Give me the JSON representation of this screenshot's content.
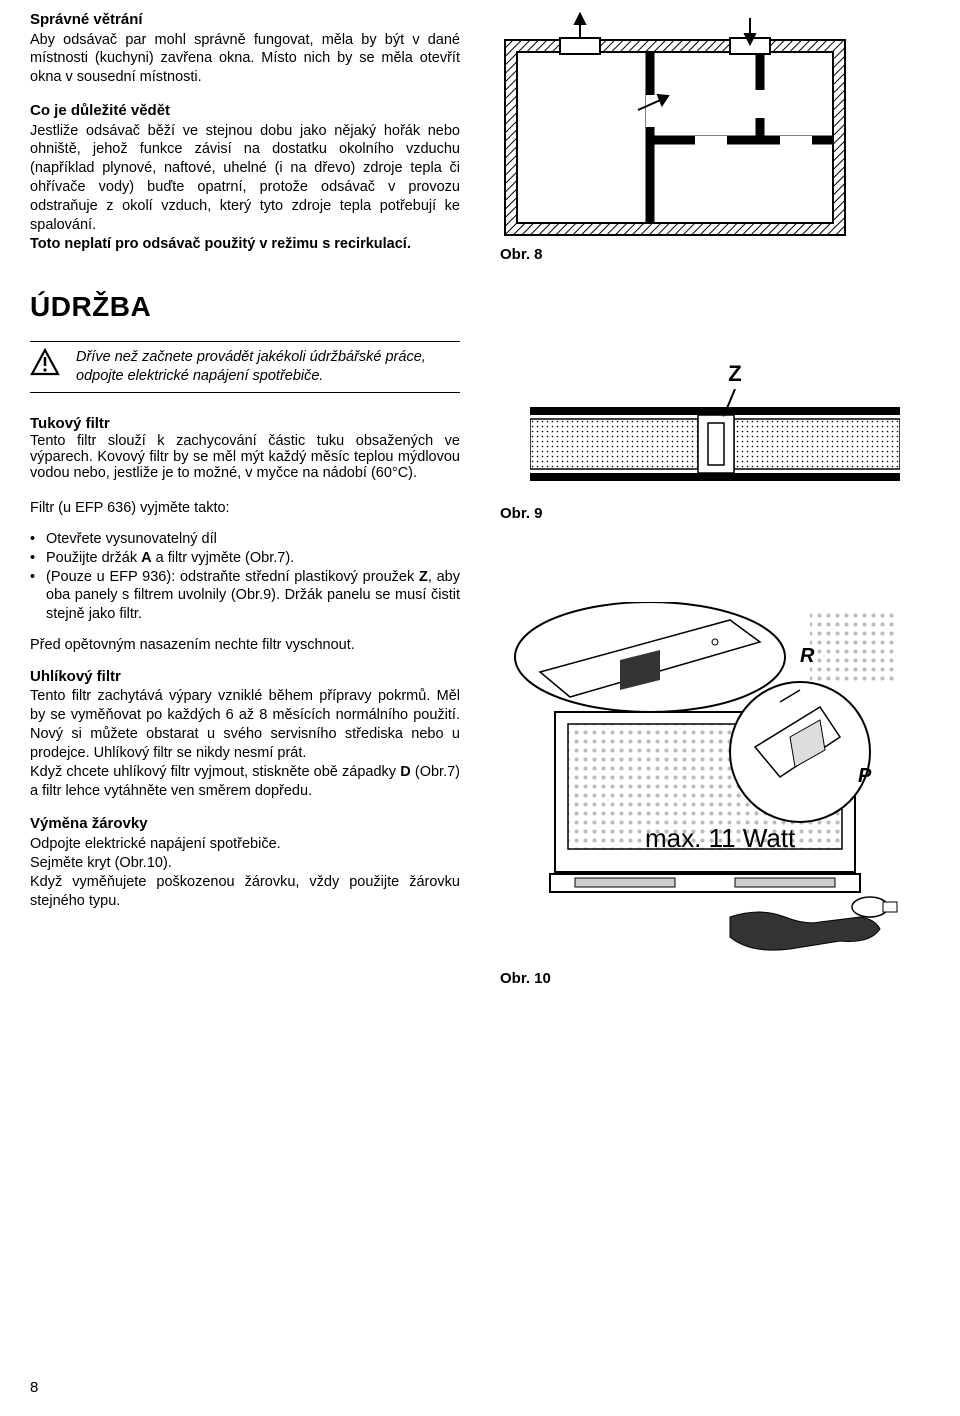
{
  "sections": {
    "ventilation": {
      "heading": "Správné větrání",
      "body": "Aby odsávač par mohl správně fungovat, měla by být v dané místnosti (kuchyni) zavřena okna. Místo nich by se měla otevřít okna v sousední místnosti."
    },
    "important": {
      "heading": "Co je důležité vědět",
      "body": "Jestliže odsávač běží ve stejnou dobu jako nějaký hořák nebo ohniště, jehož funkce závisí na dostatku okolního vzduchu (například plynové, naftové, uhelné (i na dřevo) zdroje tepla či ohřívače vody) buďte opatrní, protože odsávač v provozu odstraňuje z okolí vzduch, který tyto zdroje tepla potřebují ke spalování.",
      "bold_tail": "Toto neplatí pro odsávač použitý v režimu s recirkulací."
    },
    "maintenance": {
      "heading": "ÚDRŽBA",
      "warning": "Dříve než začnete provádět jakékoli údržbářské práce, odpojte elektrické napájení spotřebiče."
    },
    "grease": {
      "heading": "Tukový filtr",
      "body": "Tento filtr slouží k zachycování částic tuku obsažených ve výparech. Kovový filtr by se měl mýt každý měsíc teplou mýdlovou vodou nebo, jestliže je to možné, v myčce na nádobí (60°C).",
      "list_intro": "Filtr (u EFP 636) vyjměte takto:",
      "bullets": [
        "Otevřete vysunovatelný díl",
        "Použijte držák <b>A</b> a filtr vyjměte (Obr.7).",
        "(Pouze u EFP 936): odstraňte střední plastikový proužek <b>Z</b>, aby oba panely s filtrem uvolnily (Obr.9). Držák panelu se musí čistit stejně jako filtr."
      ],
      "after": "Před opětovným nasazením nechte filtr vyschnout."
    },
    "carbon": {
      "heading": "Uhlíkový filtr",
      "body": "Tento filtr zachytává výpary vzniklé během přípravy pokrmů. Měl by se vyměňovat po každých 6 až 8 měsících normálního použití. Nový si můžete obstarat u svého servisního střediska nebo u prodejce. Uhlíkový filtr se nikdy nesmí prát.",
      "body2": "Když chcete uhlíkový filtr vyjmout, stiskněte obě západky <b>D</b> (Obr.7) a filtr lehce vytáhněte ven směrem dopředu."
    },
    "bulb": {
      "heading": "Výměna žárovky",
      "body": "Odpojte elektrické napájení spotřebiče.\nSejměte kryt (Obr.10).\nKdyž vyměňujete poškozenou žárovku, vždy použijte žárovku stejného typu."
    }
  },
  "figures": {
    "f8": {
      "label": "Obr. 8"
    },
    "f9": {
      "label": "Obr. 9",
      "z": "Z"
    },
    "f10": {
      "label": "Obr. 10",
      "r": "R",
      "p": "P",
      "watt": "max. 11 Watt"
    }
  },
  "pagenum": "8"
}
